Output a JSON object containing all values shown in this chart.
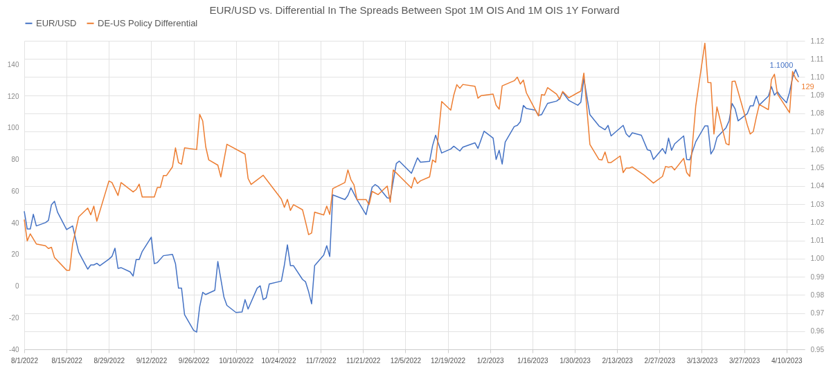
{
  "chart_data": {
    "type": "line",
    "title": "EUR/USD vs. Differential In The Spreads Between Spot 1M OIS And 1M OIS 1Y Forward",
    "xlim": [
      "2022-08-01",
      "2023-04-16"
    ],
    "xticks": [
      {
        "value": "2022-08-01",
        "label": "8/1/2022"
      },
      {
        "value": "2022-08-15",
        "label": "8/15/2022"
      },
      {
        "value": "2022-08-29",
        "label": "8/29/2022"
      },
      {
        "value": "2022-09-12",
        "label": "9/12/2022"
      },
      {
        "value": "2022-09-26",
        "label": "9/26/2022"
      },
      {
        "value": "2022-10-10",
        "label": "10/10/2022"
      },
      {
        "value": "2022-10-24",
        "label": "10/24/2022"
      },
      {
        "value": "2022-11-07",
        "label": "11/7/2022"
      },
      {
        "value": "2022-11-21",
        "label": "11/21/2022"
      },
      {
        "value": "2022-12-05",
        "label": "12/5/2022"
      },
      {
        "value": "2022-12-19",
        "label": "12/19/2022"
      },
      {
        "value": "2023-01-02",
        "label": "1/2/2023"
      },
      {
        "value": "2023-01-16",
        "label": "1/16/2023"
      },
      {
        "value": "2023-01-30",
        "label": "1/30/2023"
      },
      {
        "value": "2023-02-13",
        "label": "2/13/2023"
      },
      {
        "value": "2023-02-27",
        "label": "2/27/2023"
      },
      {
        "value": "2023-03-13",
        "label": "3/13/2023"
      },
      {
        "value": "2023-03-27",
        "label": "3/27/2023"
      },
      {
        "value": "2023-04-10",
        "label": "4/10/2023"
      }
    ],
    "ylim": [
      -40,
      155
    ],
    "yticks": [
      -40,
      -20,
      0,
      20,
      40,
      60,
      80,
      100,
      120,
      140
    ],
    "y2lim": [
      0.95,
      1.12
    ],
    "y2ticks": [
      {
        "value": 0.95,
        "label": "0.95"
      },
      {
        "value": 0.96,
        "label": "0.96"
      },
      {
        "value": 0.97,
        "label": "0.97"
      },
      {
        "value": 0.98,
        "label": "0.98"
      },
      {
        "value": 0.99,
        "label": "0.99"
      },
      {
        "value": 1.0,
        "label": "1.00"
      },
      {
        "value": 1.01,
        "label": "1.01"
      },
      {
        "value": 1.02,
        "label": "1.02"
      },
      {
        "value": 1.03,
        "label": "1.03"
      },
      {
        "value": 1.04,
        "label": "1.04"
      },
      {
        "value": 1.05,
        "label": "1.05"
      },
      {
        "value": 1.06,
        "label": "1.06"
      },
      {
        "value": 1.07,
        "label": "1.07"
      },
      {
        "value": 1.08,
        "label": "1.08"
      },
      {
        "value": 1.09,
        "label": "1.09"
      },
      {
        "value": 1.1,
        "label": "1.10"
      },
      {
        "value": 1.11,
        "label": "1.11"
      },
      {
        "value": 1.12,
        "label": "1.12"
      }
    ],
    "grid": true,
    "legend": "top",
    "series": [
      {
        "name": "EUR/USD",
        "color": "#4472c4",
        "axis": "y2",
        "x": [
          "2022-08-01",
          "2022-08-02",
          "2022-08-03",
          "2022-08-04",
          "2022-08-05",
          "2022-08-08",
          "2022-08-09",
          "2022-08-10",
          "2022-08-11",
          "2022-08-12",
          "2022-08-15",
          "2022-08-17",
          "2022-08-19",
          "2022-08-22",
          "2022-08-23",
          "2022-08-24",
          "2022-08-25",
          "2022-08-26",
          "2022-08-29",
          "2022-08-30",
          "2022-08-31",
          "2022-09-01",
          "2022-09-02",
          "2022-09-05",
          "2022-09-06",
          "2022-09-07",
          "2022-09-08",
          "2022-09-09",
          "2022-09-12",
          "2022-09-13",
          "2022-09-14",
          "2022-09-16",
          "2022-09-19",
          "2022-09-20",
          "2022-09-21",
          "2022-09-22",
          "2022-09-23",
          "2022-09-26",
          "2022-09-27",
          "2022-09-28",
          "2022-09-29",
          "2022-09-30",
          "2022-10-03",
          "2022-10-04",
          "2022-10-06",
          "2022-10-07",
          "2022-10-10",
          "2022-10-12",
          "2022-10-13",
          "2022-10-14",
          "2022-10-17",
          "2022-10-18",
          "2022-10-19",
          "2022-10-20",
          "2022-10-21",
          "2022-10-25",
          "2022-10-26",
          "2022-10-27",
          "2022-10-28",
          "2022-10-29",
          "2022-11-01",
          "2022-11-02",
          "2022-11-03",
          "2022-11-04",
          "2022-11-05",
          "2022-11-08",
          "2022-11-09",
          "2022-11-10",
          "2022-11-11",
          "2022-11-15",
          "2022-11-16",
          "2022-11-17",
          "2022-11-19",
          "2022-11-22",
          "2022-11-24",
          "2022-11-25",
          "2022-11-26",
          "2022-11-29",
          "2022-11-30",
          "2022-12-02",
          "2022-12-03",
          "2022-12-07",
          "2022-12-09",
          "2022-12-10",
          "2022-12-13",
          "2022-12-14",
          "2022-12-15",
          "2022-12-17",
          "2022-12-20",
          "2022-12-21",
          "2022-12-23",
          "2022-12-24",
          "2022-12-28",
          "2022-12-29",
          "2022-12-31",
          "2023-01-03",
          "2023-01-04",
          "2023-01-05",
          "2023-01-06",
          "2023-01-07",
          "2023-01-10",
          "2023-01-11",
          "2023-01-12",
          "2023-01-13",
          "2023-01-14",
          "2023-01-17",
          "2023-01-18",
          "2023-01-19",
          "2023-01-21",
          "2023-01-24",
          "2023-01-25",
          "2023-01-26",
          "2023-01-28",
          "2023-01-31",
          "2023-02-01",
          "2023-02-02",
          "2023-02-04",
          "2023-02-07",
          "2023-02-09",
          "2023-02-10",
          "2023-02-11",
          "2023-02-15",
          "2023-02-16",
          "2023-02-17",
          "2023-02-18",
          "2023-02-21",
          "2023-02-23",
          "2023-02-24",
          "2023-02-25",
          "2023-02-28",
          "2023-03-01",
          "2023-03-02",
          "2023-03-03",
          "2023-03-04",
          "2023-03-07",
          "2023-03-08",
          "2023-03-09",
          "2023-03-11",
          "2023-03-14",
          "2023-03-15",
          "2023-03-16",
          "2023-03-17",
          "2023-03-18",
          "2023-03-21",
          "2023-03-22",
          "2023-03-23",
          "2023-03-24",
          "2023-03-25",
          "2023-03-28",
          "2023-03-29",
          "2023-03-30",
          "2023-03-31",
          "2023-04-01",
          "2023-04-04",
          "2023-04-05",
          "2023-04-06",
          "2023-04-07",
          "2023-04-08",
          "2023-04-10",
          "2023-04-11",
          "2023-04-12",
          "2023-04-13",
          "2023-04-14"
        ],
        "values": [
          1.0261,
          1.0163,
          1.0163,
          1.0244,
          1.018,
          1.0198,
          1.021,
          1.0297,
          1.0316,
          1.0256,
          1.016,
          1.018,
          1.0035,
          0.9942,
          0.9965,
          0.9965,
          0.9974,
          0.9961,
          0.9997,
          1.0012,
          1.0057,
          0.9946,
          0.995,
          0.9927,
          0.9904,
          0.9995,
          0.9995,
          1.0039,
          1.0118,
          0.9972,
          0.9978,
          1.0016,
          1.0023,
          0.9972,
          0.9837,
          0.9837,
          0.9691,
          0.9604,
          0.9595,
          0.9735,
          0.9814,
          0.9802,
          0.9825,
          0.9984,
          0.9789,
          0.9742,
          0.9703,
          0.9706,
          0.9774,
          0.9722,
          0.9837,
          0.985,
          0.9774,
          0.9784,
          0.986,
          0.9876,
          0.9965,
          1.0076,
          0.9961,
          0.9961,
          0.9885,
          0.9872,
          0.9818,
          0.9751,
          0.9961,
          1.0019,
          1.0071,
          1.0012,
          1.0351,
          1.0325,
          1.0348,
          1.039,
          1.0325,
          1.0242,
          1.0393,
          1.0408,
          1.0397,
          1.0335,
          1.0332,
          1.0524,
          1.0537,
          1.047,
          1.0555,
          1.0531,
          1.0536,
          1.0623,
          1.068,
          1.0582,
          1.0604,
          1.0619,
          1.0593,
          1.0614,
          1.0638,
          1.0607,
          1.0702,
          1.0664,
          1.0546,
          1.0597,
          1.0521,
          1.0642,
          1.0728,
          1.0734,
          1.0754,
          1.0844,
          1.0827,
          1.0818,
          1.0789,
          1.0793,
          1.0855,
          1.0868,
          1.0881,
          1.0917,
          1.0872,
          1.0845,
          1.0862,
          1.0993,
          1.0793,
          1.0731,
          1.071,
          1.0734,
          1.0676,
          1.0734,
          1.0687,
          1.067,
          1.0693,
          1.068,
          1.06,
          1.0595,
          1.0546,
          1.0606,
          1.0578,
          1.0664,
          1.0597,
          1.0632,
          1.0676,
          1.0546,
          1.0544,
          1.0644,
          1.0731,
          1.0731,
          1.0576,
          1.0604,
          1.0667,
          1.0721,
          1.0759,
          1.0855,
          1.0825,
          1.0759,
          1.0798,
          1.0842,
          1.0842,
          1.0897,
          1.0846,
          1.0895,
          1.0948,
          1.0901,
          1.0919,
          1.0895,
          1.0859,
          1.0917,
          1.0997,
          1.1042,
          1.1
        ],
        "value_labels": [
          null,
          null,
          null,
          null,
          null,
          null,
          null,
          null,
          null,
          null,
          null,
          null,
          null,
          null,
          null,
          null,
          null,
          null,
          null,
          null,
          null,
          null,
          null,
          null,
          null,
          null,
          null,
          null,
          null,
          null,
          null,
          null,
          null,
          null,
          null,
          null,
          null,
          null,
          null,
          null,
          null,
          null,
          null,
          null,
          null,
          null,
          null,
          null,
          null,
          null,
          null,
          null,
          null,
          null,
          null,
          null,
          null,
          null,
          null,
          null,
          null,
          null,
          null,
          null,
          null,
          null,
          null,
          null,
          null,
          null,
          null,
          null,
          null,
          null,
          null,
          null,
          null,
          null,
          null,
          null,
          null,
          null,
          null,
          null,
          null,
          null,
          null,
          null,
          null,
          null,
          null,
          null,
          null,
          null,
          null,
          null,
          null,
          null,
          null,
          null,
          null,
          null,
          null,
          null,
          null,
          null,
          null,
          null,
          null,
          null,
          null,
          null,
          null,
          null,
          null,
          null,
          null,
          null,
          null,
          null,
          null,
          null,
          null,
          null,
          null,
          null,
          null,
          null,
          null,
          null,
          null,
          null,
          null,
          null,
          null,
          null,
          null,
          null,
          null,
          null,
          null,
          null,
          null,
          null,
          null,
          null,
          null,
          null,
          null,
          null,
          null,
          null,
          null,
          null,
          null,
          null,
          null,
          null,
          null,
          null,
          null,
          null,
          "1.1000"
        ]
      },
      {
        "name": "DE-US Policy Differential",
        "color": "#ed7d31",
        "x": [
          "2022-08-01",
          "2022-08-02",
          "2022-08-03",
          "2022-08-05",
          "2022-08-08",
          "2022-08-09",
          "2022-08-10",
          "2022-08-11",
          "2022-08-15",
          "2022-08-16",
          "2022-08-17",
          "2022-08-19",
          "2022-08-22",
          "2022-08-23",
          "2022-08-24",
          "2022-08-25",
          "2022-08-29",
          "2022-08-30",
          "2022-09-01",
          "2022-09-02",
          "2022-09-06",
          "2022-09-07",
          "2022-09-08",
          "2022-09-09",
          "2022-09-13",
          "2022-09-14",
          "2022-09-15",
          "2022-09-16",
          "2022-09-17",
          "2022-09-19",
          "2022-09-20",
          "2022-09-21",
          "2022-09-22",
          "2022-09-23",
          "2022-09-27",
          "2022-09-28",
          "2022-09-29",
          "2022-09-30",
          "2022-10-01",
          "2022-10-04",
          "2022-10-05",
          "2022-10-07",
          "2022-10-13",
          "2022-10-14",
          "2022-10-15",
          "2022-10-19",
          "2022-10-25",
          "2022-10-26",
          "2022-10-27",
          "2022-10-28",
          "2022-10-29",
          "2022-11-01",
          "2022-11-02",
          "2022-11-03",
          "2022-11-04",
          "2022-11-05",
          "2022-11-08",
          "2022-11-09",
          "2022-11-10",
          "2022-11-11",
          "2022-11-15",
          "2022-11-16",
          "2022-11-17",
          "2022-11-18",
          "2022-11-19",
          "2022-11-22",
          "2022-11-23",
          "2022-11-24",
          "2022-11-26",
          "2022-11-29",
          "2022-11-30",
          "2022-12-01",
          "2022-12-07",
          "2022-12-08",
          "2022-12-09",
          "2022-12-10",
          "2022-12-13",
          "2022-12-14",
          "2022-12-15",
          "2022-12-17",
          "2022-12-20",
          "2022-12-21",
          "2022-12-22",
          "2022-12-23",
          "2022-12-24",
          "2022-12-28",
          "2022-12-29",
          "2022-12-30",
          "2023-01-03",
          "2023-01-04",
          "2023-01-05",
          "2023-01-06",
          "2023-01-10",
          "2023-01-11",
          "2023-01-12",
          "2023-01-13",
          "2023-01-14",
          "2023-01-18",
          "2023-01-19",
          "2023-01-20",
          "2023-01-21",
          "2023-01-24",
          "2023-01-25",
          "2023-01-26",
          "2023-01-28",
          "2023-01-31",
          "2023-02-01",
          "2023-02-02",
          "2023-02-04",
          "2023-02-07",
          "2023-02-08",
          "2023-02-09",
          "2023-02-10",
          "2023-02-11",
          "2023-02-14",
          "2023-02-15",
          "2023-02-16",
          "2023-02-17",
          "2023-02-18",
          "2023-02-22",
          "2023-02-25",
          "2023-02-28",
          "2023-03-01",
          "2023-03-02",
          "2023-03-03",
          "2023-03-04",
          "2023-03-07",
          "2023-03-08",
          "2023-03-09",
          "2023-03-11",
          "2023-03-14",
          "2023-03-15",
          "2023-03-16",
          "2023-03-17",
          "2023-03-18",
          "2023-03-21",
          "2023-03-22",
          "2023-03-23",
          "2023-03-24",
          "2023-03-27",
          "2023-03-28",
          "2023-03-29",
          "2023-03-30",
          "2023-03-31",
          "2023-04-01",
          "2023-04-04",
          "2023-04-05",
          "2023-04-06",
          "2023-04-07",
          "2023-04-11",
          "2023-04-12",
          "2023-04-13",
          "2023-04-14"
        ],
        "values": [
          42,
          28.5,
          33,
          26.6,
          25.5,
          23.7,
          24.5,
          18,
          10,
          10,
          26.6,
          43.7,
          49.3,
          45,
          50.5,
          41,
          66.4,
          65.4,
          57.2,
          65.4,
          59.5,
          61,
          64.4,
          56.3,
          56.3,
          62.3,
          62.3,
          69.8,
          69.8,
          75.3,
          87.3,
          78,
          77,
          87.3,
          86.3,
          108.5,
          104.4,
          88,
          79.7,
          76.4,
          69,
          89.6,
          83.4,
          68,
          64.2,
          70,
          55,
          49.7,
          54.8,
          47.8,
          51.4,
          48.2,
          40.5,
          32.5,
          33.5,
          46.7,
          44.9,
          50.5,
          45.3,
          61.6,
          65.4,
          73.4,
          67.2,
          64,
          54.7,
          54.7,
          51.4,
          59.8,
          57.8,
          63.2,
          53,
          73.4,
          62,
          68.7,
          64.8,
          66.5,
          69,
          79.7,
          78.2,
          116.6,
          111.2,
          120.7,
          127.3,
          125,
          127.4,
          126.3,
          118.7,
          120.3,
          121.3,
          114.3,
          111.8,
          126.5,
          129.8,
          132,
          127.7,
          130.2,
          122.1,
          107.5,
          121,
          120.7,
          125.4,
          121.3,
          118,
          123,
          119,
          122.2,
          123.2,
          134.6,
          89.5,
          80,
          79.7,
          84.7,
          78.1,
          78.1,
          82.2,
          71.7,
          74.6,
          74.5,
          75.3,
          70,
          65.1,
          69.3,
          75.6,
          75.1,
          75.6,
          73.4,
          80.7,
          71.7,
          69.3,
          114,
          153.5,
          128.7,
          128.6,
          96.1,
          113.2,
          90,
          89.2,
          129.3,
          129.5,
          109.3,
          102,
          96.1,
          97.6,
          106.6,
          114.7,
          111.5,
          130.5,
          133.9,
          121.4,
          109.6,
          135.6,
          131.2,
          129
        ],
        "value_labels": [
          null,
          null,
          null,
          null,
          null,
          null,
          null,
          null,
          null,
          null,
          null,
          null,
          null,
          null,
          null,
          null,
          null,
          null,
          null,
          null,
          null,
          null,
          null,
          null,
          null,
          null,
          null,
          null,
          null,
          null,
          null,
          null,
          null,
          null,
          null,
          null,
          null,
          null,
          null,
          null,
          null,
          null,
          null,
          null,
          null,
          null,
          null,
          null,
          null,
          null,
          null,
          null,
          null,
          null,
          null,
          null,
          null,
          null,
          null,
          null,
          null,
          null,
          null,
          null,
          null,
          null,
          null,
          null,
          null,
          null,
          null,
          null,
          null,
          null,
          null,
          null,
          null,
          null,
          null,
          null,
          null,
          null,
          null,
          null,
          null,
          null,
          null,
          null,
          null,
          null,
          null,
          null,
          null,
          null,
          null,
          null,
          null,
          null,
          null,
          null,
          null,
          null,
          null,
          null,
          null,
          null,
          null,
          null,
          null,
          null,
          null,
          null,
          null,
          null,
          null,
          null,
          null,
          null,
          null,
          null,
          null,
          null,
          null,
          null,
          null,
          null,
          null,
          null,
          null,
          null,
          null,
          null,
          null,
          null,
          null,
          null,
          null,
          null,
          null,
          null,
          null,
          null,
          null,
          null,
          null,
          null,
          null,
          null,
          null,
          null,
          null,
          null,
          "129"
        ]
      }
    ]
  }
}
